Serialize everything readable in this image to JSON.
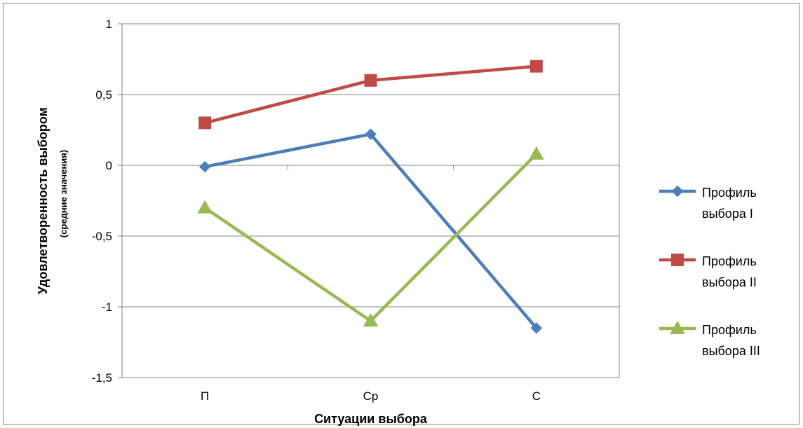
{
  "chart_data": {
    "type": "line",
    "categories": [
      "П",
      "Ср",
      "С"
    ],
    "series": [
      {
        "name": "Профиль выбора I",
        "legend_lines": [
          "Профиль",
          "выбора I"
        ],
        "values": [
          -0.01,
          0.22,
          -1.15
        ],
        "color": "#4a7ebb",
        "marker": "diamond"
      },
      {
        "name": "Профиль выбора II",
        "legend_lines": [
          "Профиль",
          "выбора II"
        ],
        "values": [
          0.3,
          0.6,
          0.7
        ],
        "color": "#be4b48",
        "marker": "square"
      },
      {
        "name": "Профиль выбора III",
        "legend_lines": [
          "Профиль",
          "выбора III"
        ],
        "values": [
          -0.3,
          -1.1,
          0.08
        ],
        "color": "#98b954",
        "marker": "triangle"
      }
    ],
    "xlabel": "Ситуации выбора",
    "ylabel": "Удовлетворенность выбором",
    "ylabel_sub": "(средние значения)",
    "ylim": [
      -1.5,
      1
    ],
    "yticks": [
      1,
      0.5,
      0,
      -0.5,
      -1,
      -1.5
    ],
    "ytick_labels": [
      "1",
      "0,5",
      "0",
      "-0,5",
      "-1",
      "-1,5"
    ],
    "grid": true,
    "legend": "right"
  }
}
